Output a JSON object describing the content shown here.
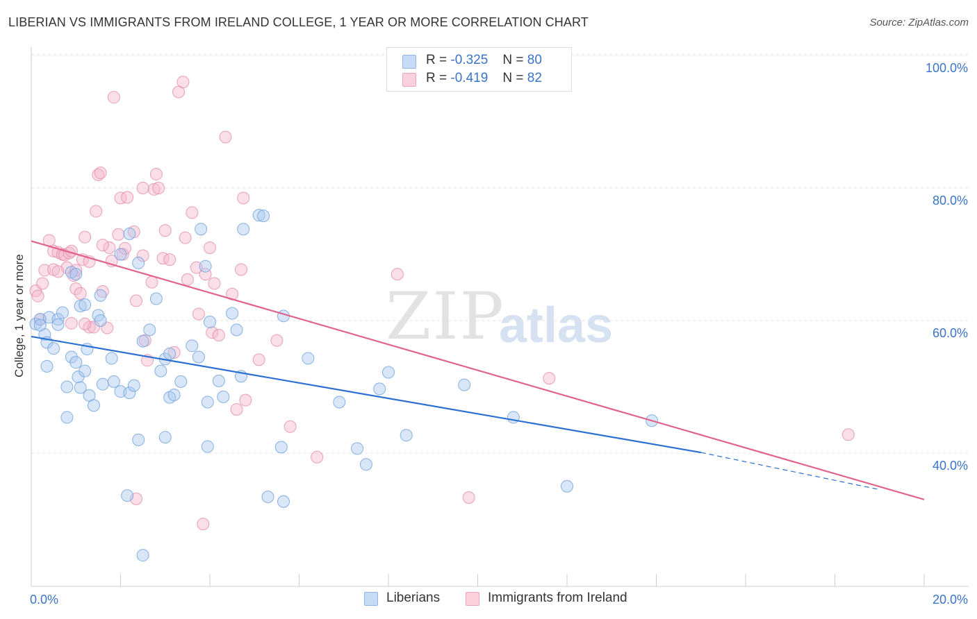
{
  "header": {
    "title": "LIBERIAN VS IMMIGRANTS FROM IRELAND COLLEGE, 1 YEAR OR MORE CORRELATION CHART",
    "source": "Source: ZipAtlas.com"
  },
  "watermark": {
    "zip": "ZIP",
    "atlas": "atlas"
  },
  "legend": {
    "rows": [
      {
        "r_label": "R =",
        "r_value": "-0.325",
        "n_label": "N =",
        "n_value": "80",
        "color": "#a9c8f0"
      },
      {
        "r_label": "R =",
        "r_value": "-0.419",
        "n_label": "N =",
        "n_value": "82",
        "color": "#f5b8cb"
      }
    ]
  },
  "bottom_legend": {
    "items": [
      {
        "label": "Liberians",
        "color": "#a9c8f0"
      },
      {
        "label": "Immigrants from Ireland",
        "color": "#f5b8cb"
      }
    ]
  },
  "colors": {
    "blue_point": "#a9c8f0",
    "blue_stroke": "#6b9fdc",
    "blue_line": "#2b6fd1",
    "pink_point": "#f5b8cb",
    "pink_stroke": "#e58aa8",
    "pink_line": "#e0628d",
    "tick_text": "#3a73c8",
    "grid": "#e3e3e3"
  },
  "chart_data": {
    "type": "scatter",
    "title": "LIBERIAN VS IMMIGRANTS FROM IRELAND COLLEGE, 1 YEAR OR MORE CORRELATION CHART",
    "xlabel": "",
    "ylabel": "College, 1 year or more",
    "xlim": [
      0,
      20
    ],
    "ylim": [
      22,
      102
    ],
    "x_tick_labels": [
      "0.0%",
      "20.0%"
    ],
    "y_ticks": [
      40,
      60,
      80,
      100
    ],
    "y_tick_labels": [
      "40.0%",
      "60.0%",
      "80.0%",
      "100.0%"
    ],
    "grid": true,
    "legend_position": "top-center",
    "series": [
      {
        "name": "Liberians",
        "r": -0.325,
        "n": 80,
        "trend": {
          "x0": 0.0,
          "y0": 57.6,
          "x1": 15.0,
          "y1": 40.1,
          "dashed_to_x": 19.0,
          "dashed_to_y": 34.5
        },
        "points": [
          [
            0.1,
            59.5
          ],
          [
            0.2,
            60.2
          ],
          [
            0.3,
            57.9
          ],
          [
            0.4,
            60.5
          ],
          [
            0.6,
            60.2
          ],
          [
            0.2,
            59.3
          ],
          [
            0.35,
            56.7
          ],
          [
            0.5,
            55.8
          ],
          [
            0.6,
            59.4
          ],
          [
            0.7,
            61.2
          ],
          [
            0.35,
            53.1
          ],
          [
            0.9,
            67.3
          ],
          [
            1.0,
            67.0
          ],
          [
            1.1,
            62.2
          ],
          [
            1.2,
            62.4
          ],
          [
            0.9,
            54.5
          ],
          [
            1.0,
            53.7
          ],
          [
            1.05,
            51.5
          ],
          [
            1.2,
            52.4
          ],
          [
            1.25,
            55.7
          ],
          [
            1.5,
            60.8
          ],
          [
            1.55,
            63.8
          ],
          [
            0.8,
            50.0
          ],
          [
            1.1,
            49.9
          ],
          [
            1.3,
            48.7
          ],
          [
            1.4,
            47.2
          ],
          [
            0.8,
            45.4
          ],
          [
            1.6,
            50.4
          ],
          [
            1.8,
            54.3
          ],
          [
            1.85,
            50.8
          ],
          [
            2.0,
            49.3
          ],
          [
            2.2,
            49.1
          ],
          [
            2.3,
            50.2
          ],
          [
            2.0,
            70.0
          ],
          [
            2.2,
            73.1
          ],
          [
            2.4,
            68.7
          ],
          [
            2.65,
            58.6
          ],
          [
            2.8,
            63.3
          ],
          [
            2.5,
            56.9
          ],
          [
            2.9,
            52.4
          ],
          [
            3.0,
            54.2
          ],
          [
            3.1,
            48.4
          ],
          [
            3.2,
            48.8
          ],
          [
            3.35,
            50.8
          ],
          [
            3.0,
            42.4
          ],
          [
            3.8,
            73.8
          ],
          [
            3.9,
            68.2
          ],
          [
            3.6,
            56.2
          ],
          [
            3.75,
            54.5
          ],
          [
            3.95,
            47.7
          ],
          [
            4.0,
            59.8
          ],
          [
            4.2,
            50.9
          ],
          [
            4.3,
            48.5
          ],
          [
            4.5,
            61.1
          ],
          [
            4.6,
            58.6
          ],
          [
            4.7,
            51.6
          ],
          [
            4.75,
            73.8
          ],
          [
            5.1,
            75.9
          ],
          [
            5.2,
            75.8
          ],
          [
            3.95,
            41.0
          ],
          [
            5.6,
            40.9
          ],
          [
            5.65,
            60.7
          ],
          [
            6.2,
            54.3
          ],
          [
            6.9,
            47.7
          ],
          [
            7.3,
            40.7
          ],
          [
            7.5,
            38.3
          ],
          [
            7.8,
            49.7
          ],
          [
            8.0,
            52.2
          ],
          [
            8.4,
            42.7
          ],
          [
            9.7,
            50.3
          ],
          [
            10.8,
            45.4
          ],
          [
            12.0,
            35.0
          ],
          [
            13.9,
            44.9
          ],
          [
            2.15,
            33.6
          ],
          [
            5.3,
            33.4
          ],
          [
            5.65,
            32.7
          ],
          [
            2.5,
            24.6
          ],
          [
            1.55,
            60.0
          ],
          [
            2.4,
            42.0
          ],
          [
            3.1,
            55.0
          ]
        ]
      },
      {
        "name": "Immigrants from Ireland",
        "r": -0.419,
        "n": 82,
        "trend": {
          "x0": 0.0,
          "y0": 72.0,
          "x1": 20.0,
          "y1": 33.0
        },
        "points": [
          [
            0.1,
            64.5
          ],
          [
            0.15,
            63.7
          ],
          [
            0.2,
            60.2
          ],
          [
            0.3,
            67.6
          ],
          [
            0.4,
            72.1
          ],
          [
            0.5,
            70.5
          ],
          [
            0.5,
            67.7
          ],
          [
            0.6,
            70.3
          ],
          [
            0.7,
            70.0
          ],
          [
            0.75,
            69.9
          ],
          [
            0.8,
            68.0
          ],
          [
            0.85,
            70.2
          ],
          [
            0.9,
            70.5
          ],
          [
            0.95,
            66.8
          ],
          [
            1.0,
            67.6
          ],
          [
            1.0,
            64.8
          ],
          [
            1.1,
            64.1
          ],
          [
            1.15,
            69.2
          ],
          [
            1.2,
            72.6
          ],
          [
            1.3,
            68.9
          ],
          [
            1.3,
            59.0
          ],
          [
            1.4,
            59.0
          ],
          [
            1.45,
            76.5
          ],
          [
            1.5,
            82.0
          ],
          [
            1.55,
            82.3
          ],
          [
            1.6,
            64.4
          ],
          [
            1.7,
            58.9
          ],
          [
            1.75,
            71.0
          ],
          [
            1.8,
            69.0
          ],
          [
            1.85,
            93.7
          ],
          [
            1.95,
            73.0
          ],
          [
            2.0,
            78.5
          ],
          [
            2.05,
            70.0
          ],
          [
            2.1,
            70.9
          ],
          [
            2.15,
            78.6
          ],
          [
            2.3,
            73.4
          ],
          [
            2.35,
            63.0
          ],
          [
            2.5,
            69.8
          ],
          [
            2.55,
            57.0
          ],
          [
            2.6,
            54.0
          ],
          [
            2.7,
            65.8
          ],
          [
            2.75,
            79.8
          ],
          [
            2.8,
            82.1
          ],
          [
            2.85,
            80.0
          ],
          [
            2.95,
            69.4
          ],
          [
            3.0,
            73.6
          ],
          [
            3.1,
            69.2
          ],
          [
            3.2,
            55.2
          ],
          [
            3.3,
            94.5
          ],
          [
            3.4,
            96.0
          ],
          [
            3.45,
            72.5
          ],
          [
            3.5,
            66.2
          ],
          [
            3.6,
            76.3
          ],
          [
            3.75,
            61.0
          ],
          [
            3.9,
            67.0
          ],
          [
            4.0,
            71.0
          ],
          [
            4.05,
            58.2
          ],
          [
            4.1,
            65.6
          ],
          [
            4.2,
            57.8
          ],
          [
            4.35,
            87.7
          ],
          [
            4.5,
            64.0
          ],
          [
            4.6,
            46.6
          ],
          [
            4.7,
            67.7
          ],
          [
            4.75,
            78.5
          ],
          [
            4.8,
            48.0
          ],
          [
            5.1,
            54.1
          ],
          [
            5.5,
            57.0
          ],
          [
            5.8,
            44.0
          ],
          [
            6.4,
            39.4
          ],
          [
            8.2,
            67.0
          ],
          [
            9.8,
            33.3
          ],
          [
            11.6,
            51.3
          ],
          [
            18.3,
            42.8
          ],
          [
            2.35,
            33.1
          ],
          [
            3.85,
            29.3
          ],
          [
            1.2,
            59.5
          ],
          [
            0.6,
            67.4
          ],
          [
            1.6,
            71.4
          ],
          [
            2.5,
            80.0
          ],
          [
            3.7,
            68.0
          ],
          [
            0.25,
            65.6
          ],
          [
            0.9,
            59.6
          ]
        ]
      }
    ]
  }
}
